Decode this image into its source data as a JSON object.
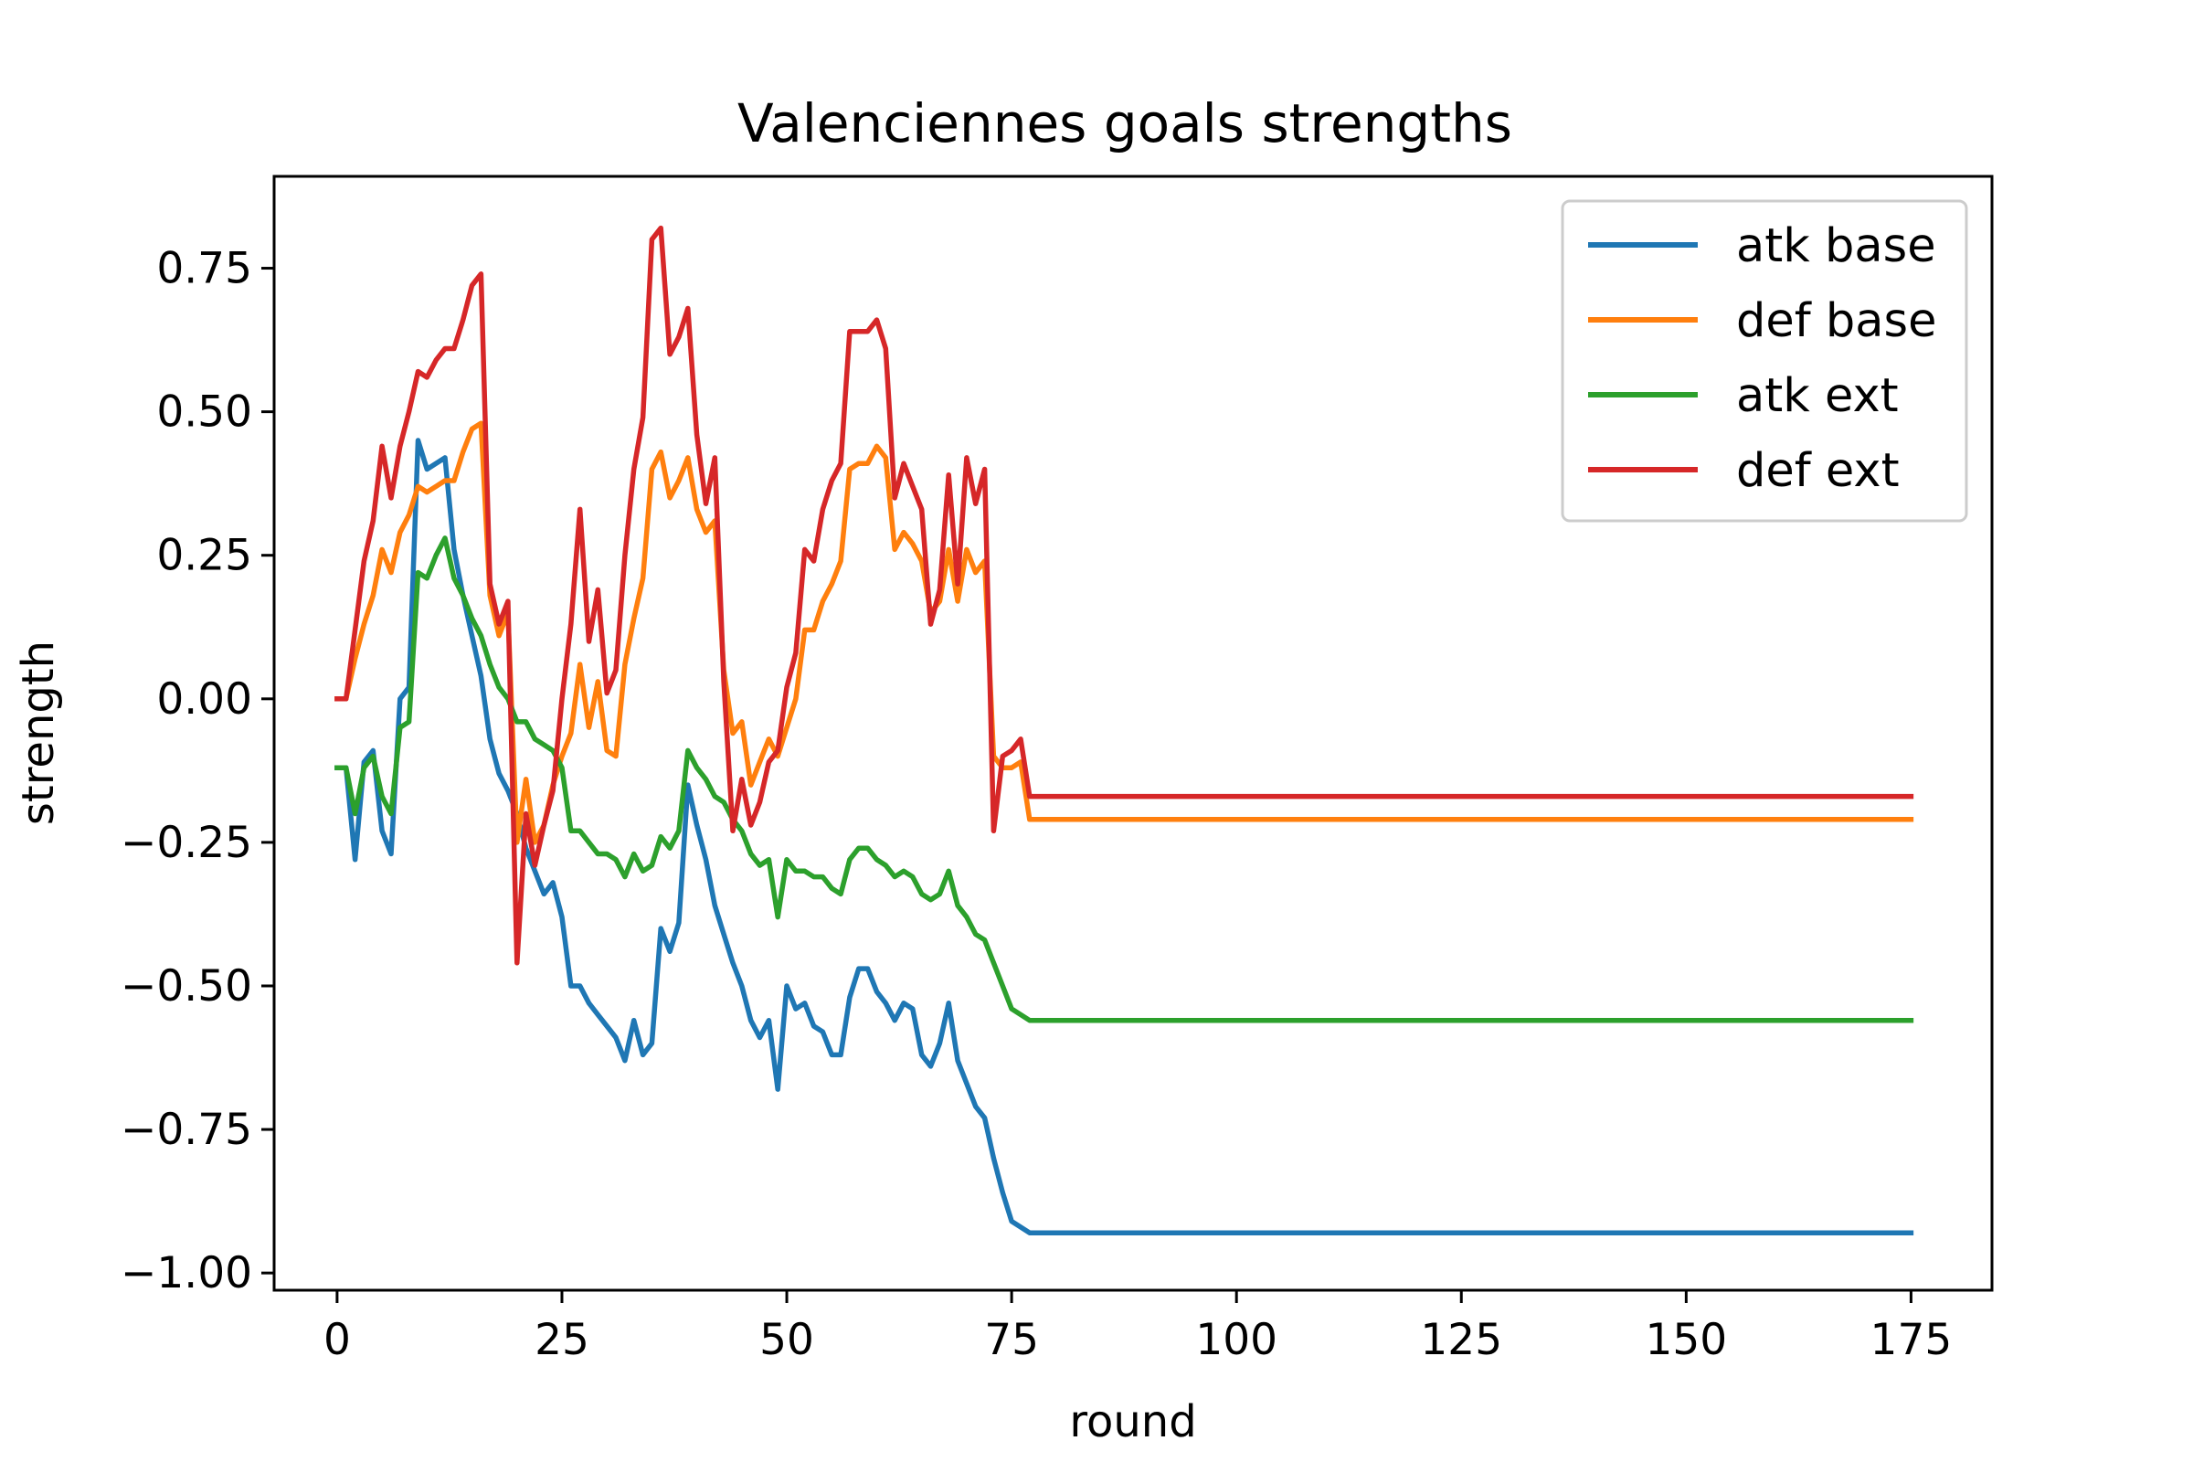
{
  "chart_data": {
    "type": "line",
    "title": "Valenciennes goals strengths",
    "xlabel": "round",
    "ylabel": "strength",
    "xlim": [
      -7,
      184
    ],
    "ylim": [
      -1.03,
      0.91
    ],
    "x_ticks": [
      0,
      25,
      50,
      75,
      100,
      125,
      150,
      175
    ],
    "x_tick_labels": [
      "0",
      "25",
      "50",
      "75",
      "100",
      "125",
      "150",
      "175"
    ],
    "y_ticks": [
      0.75,
      0.5,
      0.25,
      0.0,
      -0.25,
      -0.5,
      -0.75,
      -1.0
    ],
    "y_tick_labels": [
      "0.75",
      "0.50",
      "0.25",
      "0.00",
      "−0.25",
      "−0.50",
      "−0.75",
      "−1.00"
    ],
    "grid": false,
    "legend_position": "top-right",
    "series": [
      {
        "name": "atk base",
        "color": "#1f77b4",
        "points": [
          [
            0,
            -0.12
          ],
          [
            1,
            -0.12
          ],
          [
            2,
            -0.28
          ],
          [
            3,
            -0.11
          ],
          [
            4,
            -0.09
          ],
          [
            5,
            -0.23
          ],
          [
            6,
            -0.27
          ],
          [
            7,
            0.0
          ],
          [
            8,
            0.02
          ],
          [
            9,
            0.45
          ],
          [
            10,
            0.4
          ],
          [
            11,
            0.41
          ],
          [
            12,
            0.42
          ],
          [
            13,
            0.26
          ],
          [
            14,
            0.18
          ],
          [
            15,
            0.11
          ],
          [
            16,
            0.04
          ],
          [
            17,
            -0.07
          ],
          [
            18,
            -0.13
          ],
          [
            19,
            -0.16
          ],
          [
            20,
            -0.2
          ],
          [
            21,
            -0.26
          ],
          [
            22,
            -0.3
          ],
          [
            23,
            -0.34
          ],
          [
            24,
            -0.32
          ],
          [
            25,
            -0.38
          ],
          [
            26,
            -0.5
          ],
          [
            27,
            -0.5
          ],
          [
            28,
            -0.53
          ],
          [
            29,
            -0.55
          ],
          [
            30,
            -0.57
          ],
          [
            31,
            -0.59
          ],
          [
            32,
            -0.63
          ],
          [
            33,
            -0.56
          ],
          [
            34,
            -0.62
          ],
          [
            35,
            -0.6
          ],
          [
            36,
            -0.4
          ],
          [
            37,
            -0.44
          ],
          [
            38,
            -0.39
          ],
          [
            39,
            -0.15
          ],
          [
            40,
            -0.22
          ],
          [
            41,
            -0.28
          ],
          [
            42,
            -0.36
          ],
          [
            43,
            -0.41
          ],
          [
            44,
            -0.46
          ],
          [
            45,
            -0.5
          ],
          [
            46,
            -0.56
          ],
          [
            47,
            -0.59
          ],
          [
            48,
            -0.56
          ],
          [
            49,
            -0.68
          ],
          [
            50,
            -0.5
          ],
          [
            51,
            -0.54
          ],
          [
            52,
            -0.53
          ],
          [
            53,
            -0.57
          ],
          [
            54,
            -0.58
          ],
          [
            55,
            -0.62
          ],
          [
            56,
            -0.62
          ],
          [
            57,
            -0.52
          ],
          [
            58,
            -0.47
          ],
          [
            59,
            -0.47
          ],
          [
            60,
            -0.51
          ],
          [
            61,
            -0.53
          ],
          [
            62,
            -0.56
          ],
          [
            63,
            -0.53
          ],
          [
            64,
            -0.54
          ],
          [
            65,
            -0.62
          ],
          [
            66,
            -0.64
          ],
          [
            67,
            -0.6
          ],
          [
            68,
            -0.53
          ],
          [
            69,
            -0.63
          ],
          [
            70,
            -0.67
          ],
          [
            71,
            -0.71
          ],
          [
            72,
            -0.73
          ],
          [
            73,
            -0.8
          ],
          [
            74,
            -0.86
          ],
          [
            75,
            -0.91
          ],
          [
            77,
            -0.93
          ],
          [
            175,
            -0.93
          ]
        ]
      },
      {
        "name": "def base",
        "color": "#ff7f0e",
        "points": [
          [
            0,
            0.0
          ],
          [
            1,
            0.0
          ],
          [
            2,
            0.07
          ],
          [
            3,
            0.13
          ],
          [
            4,
            0.18
          ],
          [
            5,
            0.26
          ],
          [
            6,
            0.22
          ],
          [
            7,
            0.29
          ],
          [
            8,
            0.32
          ],
          [
            9,
            0.37
          ],
          [
            10,
            0.36
          ],
          [
            11,
            0.37
          ],
          [
            12,
            0.38
          ],
          [
            13,
            0.38
          ],
          [
            14,
            0.43
          ],
          [
            15,
            0.47
          ],
          [
            16,
            0.48
          ],
          [
            17,
            0.18
          ],
          [
            18,
            0.11
          ],
          [
            19,
            0.15
          ],
          [
            20,
            -0.25
          ],
          [
            21,
            -0.14
          ],
          [
            22,
            -0.25
          ],
          [
            23,
            -0.22
          ],
          [
            24,
            -0.15
          ],
          [
            25,
            -0.1
          ],
          [
            26,
            -0.06
          ],
          [
            27,
            0.06
          ],
          [
            28,
            -0.05
          ],
          [
            29,
            0.03
          ],
          [
            30,
            -0.09
          ],
          [
            31,
            -0.1
          ],
          [
            32,
            0.06
          ],
          [
            33,
            0.14
          ],
          [
            34,
            0.21
          ],
          [
            35,
            0.4
          ],
          [
            36,
            0.43
          ],
          [
            37,
            0.35
          ],
          [
            38,
            0.38
          ],
          [
            39,
            0.42
          ],
          [
            40,
            0.33
          ],
          [
            41,
            0.29
          ],
          [
            42,
            0.31
          ],
          [
            43,
            0.05
          ],
          [
            44,
            -0.06
          ],
          [
            45,
            -0.04
          ],
          [
            46,
            -0.15
          ],
          [
            47,
            -0.11
          ],
          [
            48,
            -0.07
          ],
          [
            49,
            -0.1
          ],
          [
            50,
            -0.05
          ],
          [
            51,
            0.0
          ],
          [
            52,
            0.12
          ],
          [
            53,
            0.12
          ],
          [
            54,
            0.17
          ],
          [
            55,
            0.2
          ],
          [
            56,
            0.24
          ],
          [
            57,
            0.4
          ],
          [
            58,
            0.41
          ],
          [
            59,
            0.41
          ],
          [
            60,
            0.44
          ],
          [
            61,
            0.42
          ],
          [
            62,
            0.26
          ],
          [
            63,
            0.29
          ],
          [
            64,
            0.27
          ],
          [
            65,
            0.24
          ],
          [
            66,
            0.15
          ],
          [
            67,
            0.17
          ],
          [
            68,
            0.26
          ],
          [
            69,
            0.17
          ],
          [
            70,
            0.26
          ],
          [
            71,
            0.22
          ],
          [
            72,
            0.24
          ],
          [
            73,
            -0.1
          ],
          [
            74,
            -0.12
          ],
          [
            75,
            -0.12
          ],
          [
            76,
            -0.11
          ],
          [
            77,
            -0.21
          ],
          [
            175,
            -0.21
          ]
        ]
      },
      {
        "name": "atk ext",
        "color": "#2ca02c",
        "points": [
          [
            0,
            -0.12
          ],
          [
            1,
            -0.12
          ],
          [
            2,
            -0.2
          ],
          [
            3,
            -0.12
          ],
          [
            4,
            -0.1
          ],
          [
            5,
            -0.17
          ],
          [
            6,
            -0.2
          ],
          [
            7,
            -0.05
          ],
          [
            8,
            -0.04
          ],
          [
            9,
            0.22
          ],
          [
            10,
            0.21
          ],
          [
            11,
            0.25
          ],
          [
            12,
            0.28
          ],
          [
            13,
            0.21
          ],
          [
            14,
            0.18
          ],
          [
            15,
            0.14
          ],
          [
            16,
            0.11
          ],
          [
            17,
            0.06
          ],
          [
            18,
            0.02
          ],
          [
            19,
            0.0
          ],
          [
            20,
            -0.04
          ],
          [
            21,
            -0.04
          ],
          [
            22,
            -0.07
          ],
          [
            23,
            -0.08
          ],
          [
            24,
            -0.09
          ],
          [
            25,
            -0.12
          ],
          [
            26,
            -0.23
          ],
          [
            27,
            -0.23
          ],
          [
            28,
            -0.25
          ],
          [
            29,
            -0.27
          ],
          [
            30,
            -0.27
          ],
          [
            31,
            -0.28
          ],
          [
            32,
            -0.31
          ],
          [
            33,
            -0.27
          ],
          [
            34,
            -0.3
          ],
          [
            35,
            -0.29
          ],
          [
            36,
            -0.24
          ],
          [
            37,
            -0.26
          ],
          [
            38,
            -0.23
          ],
          [
            39,
            -0.09
          ],
          [
            40,
            -0.12
          ],
          [
            41,
            -0.14
          ],
          [
            42,
            -0.17
          ],
          [
            43,
            -0.18
          ],
          [
            44,
            -0.21
          ],
          [
            45,
            -0.23
          ],
          [
            46,
            -0.27
          ],
          [
            47,
            -0.29
          ],
          [
            48,
            -0.28
          ],
          [
            49,
            -0.38
          ],
          [
            50,
            -0.28
          ],
          [
            51,
            -0.3
          ],
          [
            52,
            -0.3
          ],
          [
            53,
            -0.31
          ],
          [
            54,
            -0.31
          ],
          [
            55,
            -0.33
          ],
          [
            56,
            -0.34
          ],
          [
            57,
            -0.28
          ],
          [
            58,
            -0.26
          ],
          [
            59,
            -0.26
          ],
          [
            60,
            -0.28
          ],
          [
            61,
            -0.29
          ],
          [
            62,
            -0.31
          ],
          [
            63,
            -0.3
          ],
          [
            64,
            -0.31
          ],
          [
            65,
            -0.34
          ],
          [
            66,
            -0.35
          ],
          [
            67,
            -0.34
          ],
          [
            68,
            -0.3
          ],
          [
            69,
            -0.36
          ],
          [
            70,
            -0.38
          ],
          [
            71,
            -0.41
          ],
          [
            72,
            -0.42
          ],
          [
            73,
            -0.46
          ],
          [
            74,
            -0.5
          ],
          [
            75,
            -0.54
          ],
          [
            77,
            -0.56
          ],
          [
            175,
            -0.56
          ]
        ]
      },
      {
        "name": "def ext",
        "color": "#d62728",
        "points": [
          [
            0,
            0.0
          ],
          [
            1,
            0.0
          ],
          [
            2,
            0.12
          ],
          [
            3,
            0.24
          ],
          [
            4,
            0.31
          ],
          [
            5,
            0.44
          ],
          [
            6,
            0.35
          ],
          [
            7,
            0.44
          ],
          [
            8,
            0.5
          ],
          [
            9,
            0.57
          ],
          [
            10,
            0.56
          ],
          [
            11,
            0.59
          ],
          [
            12,
            0.61
          ],
          [
            13,
            0.61
          ],
          [
            14,
            0.66
          ],
          [
            15,
            0.72
          ],
          [
            16,
            0.74
          ],
          [
            17,
            0.2
          ],
          [
            18,
            0.13
          ],
          [
            19,
            0.17
          ],
          [
            20,
            -0.46
          ],
          [
            21,
            -0.2
          ],
          [
            22,
            -0.29
          ],
          [
            23,
            -0.22
          ],
          [
            24,
            -0.16
          ],
          [
            25,
            0.0
          ],
          [
            26,
            0.13
          ],
          [
            27,
            0.33
          ],
          [
            28,
            0.1
          ],
          [
            29,
            0.19
          ],
          [
            30,
            0.01
          ],
          [
            31,
            0.05
          ],
          [
            32,
            0.25
          ],
          [
            33,
            0.4
          ],
          [
            34,
            0.49
          ],
          [
            35,
            0.8
          ],
          [
            36,
            0.82
          ],
          [
            37,
            0.6
          ],
          [
            38,
            0.63
          ],
          [
            39,
            0.68
          ],
          [
            40,
            0.46
          ],
          [
            41,
            0.34
          ],
          [
            42,
            0.42
          ],
          [
            43,
            0.03
          ],
          [
            44,
            -0.23
          ],
          [
            45,
            -0.14
          ],
          [
            46,
            -0.22
          ],
          [
            47,
            -0.18
          ],
          [
            48,
            -0.11
          ],
          [
            49,
            -0.09
          ],
          [
            50,
            0.02
          ],
          [
            51,
            0.08
          ],
          [
            52,
            0.26
          ],
          [
            53,
            0.24
          ],
          [
            54,
            0.33
          ],
          [
            55,
            0.38
          ],
          [
            56,
            0.41
          ],
          [
            57,
            0.64
          ],
          [
            58,
            0.64
          ],
          [
            59,
            0.64
          ],
          [
            60,
            0.66
          ],
          [
            61,
            0.61
          ],
          [
            62,
            0.35
          ],
          [
            63,
            0.41
          ],
          [
            64,
            0.37
          ],
          [
            65,
            0.33
          ],
          [
            66,
            0.13
          ],
          [
            67,
            0.19
          ],
          [
            68,
            0.39
          ],
          [
            69,
            0.2
          ],
          [
            70,
            0.42
          ],
          [
            71,
            0.34
          ],
          [
            72,
            0.4
          ],
          [
            73,
            -0.23
          ],
          [
            74,
            -0.1
          ],
          [
            75,
            -0.09
          ],
          [
            76,
            -0.07
          ],
          [
            77,
            -0.17
          ],
          [
            175,
            -0.17
          ]
        ]
      }
    ]
  }
}
